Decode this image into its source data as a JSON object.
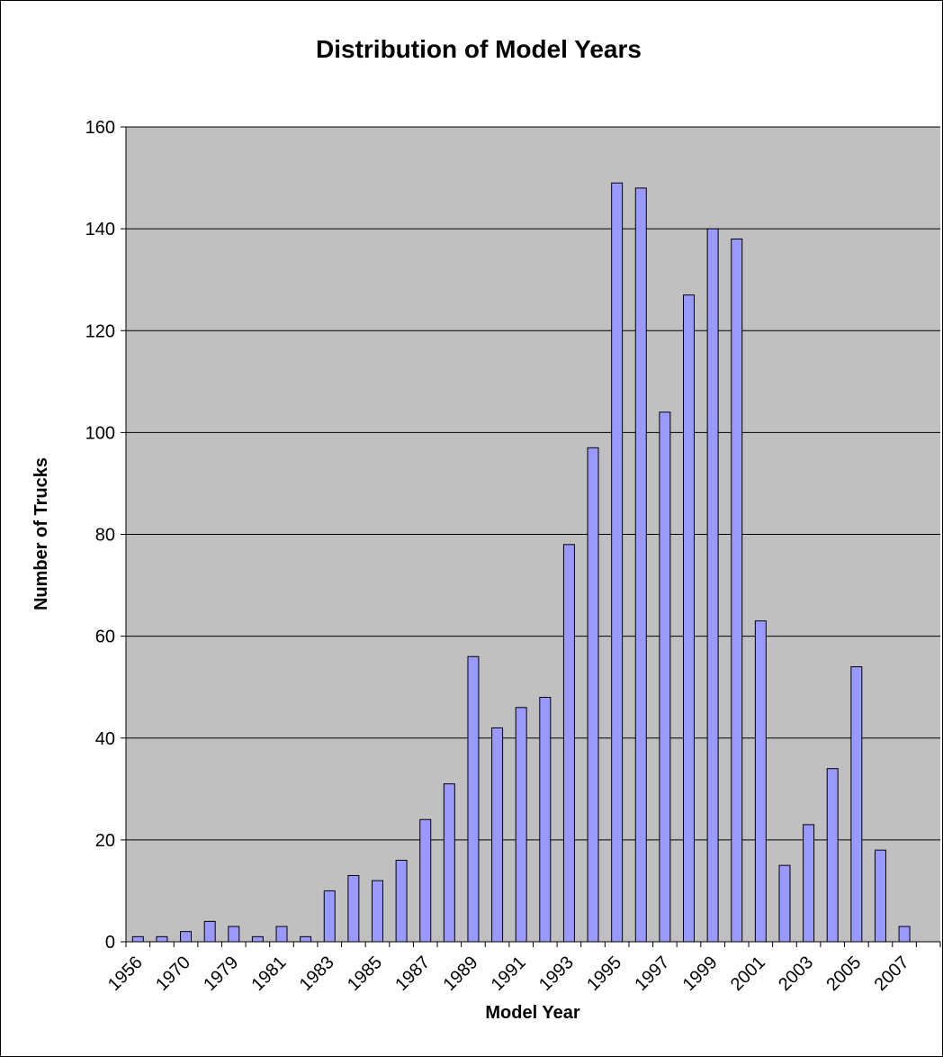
{
  "chart_data": {
    "type": "bar",
    "title": "Distribution of Model Years",
    "xlabel": "Model Year",
    "ylabel": "Number of Trucks",
    "ylim": [
      0,
      160
    ],
    "yticks": [
      0,
      20,
      40,
      60,
      80,
      100,
      120,
      140,
      160
    ],
    "grid": true,
    "legend": "none",
    "categories": [
      "1956",
      "",
      "1970",
      "",
      "1979",
      "",
      "1981",
      "",
      "1983",
      "",
      "1985",
      "",
      "1987",
      "",
      "1989",
      "",
      "1991",
      "",
      "1993",
      "",
      "1995",
      "",
      "1997",
      "",
      "1999",
      "",
      "2001",
      "",
      "2003",
      "",
      "2005",
      "",
      "2007",
      ""
    ],
    "values": [
      1,
      1,
      2,
      4,
      3,
      1,
      3,
      1,
      10,
      13,
      12,
      16,
      24,
      31,
      56,
      42,
      46,
      48,
      78,
      97,
      149,
      148,
      104,
      127,
      140,
      138,
      63,
      15,
      23,
      34,
      54,
      18,
      3,
      0
    ],
    "colors": {
      "plot_background": "#c0c0c0",
      "bar_fill": "#9999ff",
      "bar_stroke": "#000000",
      "gridline": "#000000"
    }
  }
}
